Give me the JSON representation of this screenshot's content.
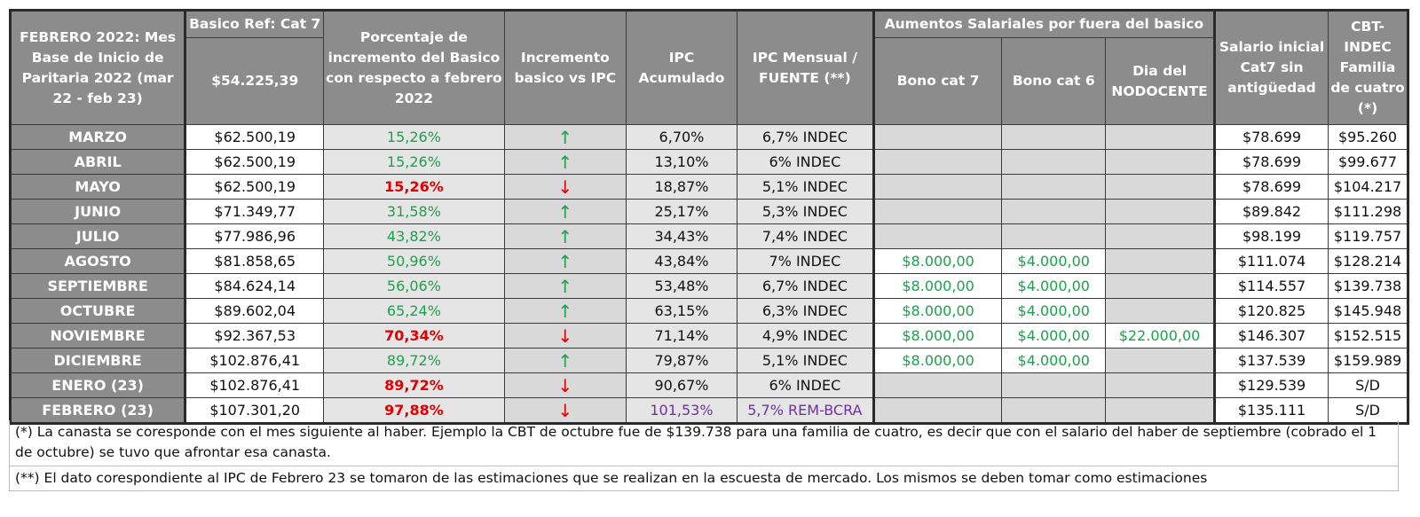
{
  "header": {
    "col1": "FEBRERO 2022: Mes Base de Inicio de Paritaria 2022 (mar 22 - feb 23)",
    "basico_ref": "Basico Ref: Cat 7",
    "basico_ref_value": "$54.225,39",
    "porcentaje": "Porcentaje de incremento del Basico con respecto a febrero 2022",
    "incremento": "Incremento basico vs IPC",
    "ipc_acumulado": "IPC Acumulado",
    "ipc_mensual": "IPC Mensual / FUENTE (**)",
    "aumentos": "Aumentos Salariales por fuera del basico",
    "bono_cat7": "Bono cat 7",
    "bono_cat6": "Bono cat 6",
    "dia_nodocente": "Dia del NODOCENTE",
    "salario_inicial": "Salario inicial Cat7 sin antigüedad",
    "cbt": "CBT-INDEC Familia de cuatro (*)"
  },
  "rows": [
    {
      "mes": "MARZO",
      "basico": "$62.500,19",
      "pct": "15,26%",
      "pct_style": "green",
      "trend": "up",
      "arrow": "↑",
      "ipc_acum": "6,70%",
      "ipc_mensual": "6,7% INDEC",
      "bono7": "",
      "bono6": "",
      "dia": "",
      "salario": "$78.699",
      "cbt": "$95.260"
    },
    {
      "mes": "ABRIL",
      "basico": "$62.500,19",
      "pct": "15,26%",
      "pct_style": "green",
      "trend": "up",
      "arrow": "↑",
      "ipc_acum": "13,10%",
      "ipc_mensual": "6% INDEC",
      "bono7": "",
      "bono6": "",
      "dia": "",
      "salario": "$78.699",
      "cbt": "$99.677"
    },
    {
      "mes": "MAYO",
      "basico": "$62.500,19",
      "pct": "15,26%",
      "pct_style": "red",
      "trend": "down",
      "arrow": "↓",
      "ipc_acum": "18,87%",
      "ipc_mensual": "5,1% INDEC",
      "bono7": "",
      "bono6": "",
      "dia": "",
      "salario": "$78.699",
      "cbt": "$104.217"
    },
    {
      "mes": "JUNIO",
      "basico": "$71.349,77",
      "pct": "31,58%",
      "pct_style": "green",
      "trend": "up",
      "arrow": "↑",
      "ipc_acum": "25,17%",
      "ipc_mensual": "5,3% INDEC",
      "bono7": "",
      "bono6": "",
      "dia": "",
      "salario": "$89.842",
      "cbt": "$111.298"
    },
    {
      "mes": "JULIO",
      "basico": "$77.986,96",
      "pct": "43,82%",
      "pct_style": "green",
      "trend": "up",
      "arrow": "↑",
      "ipc_acum": "34,43%",
      "ipc_mensual": "7,4% INDEC",
      "bono7": "",
      "bono6": "",
      "dia": "",
      "salario": "$98.199",
      "cbt": "$119.757"
    },
    {
      "mes": "AGOSTO",
      "basico": "$81.858,65",
      "pct": "50,96%",
      "pct_style": "green",
      "trend": "up",
      "arrow": "↑",
      "ipc_acum": "43,84%",
      "ipc_mensual": "7% INDEC",
      "bono7": "$8.000,00",
      "bono6": "$4.000,00",
      "dia": "",
      "salario": "$111.074",
      "cbt": "$128.214"
    },
    {
      "mes": "SEPTIEMBRE",
      "basico": "$84.624,14",
      "pct": "56,06%",
      "pct_style": "green",
      "trend": "up",
      "arrow": "↑",
      "ipc_acum": "53,48%",
      "ipc_mensual": "6,7% INDEC",
      "bono7": "$8.000,00",
      "bono6": "$4.000,00",
      "dia": "",
      "salario": "$114.557",
      "cbt": "$139.738"
    },
    {
      "mes": "OCTUBRE",
      "basico": "$89.602,04",
      "pct": "65,24%",
      "pct_style": "green",
      "trend": "up",
      "arrow": "↑",
      "ipc_acum": "63,15%",
      "ipc_mensual": "6,3% INDEC",
      "bono7": "$8.000,00",
      "bono6": "$4.000,00",
      "dia": "",
      "salario": "$120.825",
      "cbt": "$145.948"
    },
    {
      "mes": "NOVIEMBRE",
      "basico": "$92.367,53",
      "pct": "70,34%",
      "pct_style": "red",
      "trend": "down",
      "arrow": "↓",
      "ipc_acum": "71,14%",
      "ipc_mensual": "4,9% INDEC",
      "bono7": "$8.000,00",
      "bono6": "$4.000,00",
      "dia": "$22.000,00",
      "salario": "$146.307",
      "cbt": "$152.515"
    },
    {
      "mes": "DICIEMBRE",
      "basico": "$102.876,41",
      "pct": "89,72%",
      "pct_style": "green",
      "trend": "up",
      "arrow": "↑",
      "ipc_acum": "79,87%",
      "ipc_mensual": "5,1% INDEC",
      "bono7": "$8.000,00",
      "bono6": "$4.000,00",
      "dia": "",
      "salario": "$137.539",
      "cbt": "$159.989"
    },
    {
      "mes": "ENERO (23)",
      "basico": "$102.876,41",
      "pct": "89,72%",
      "pct_style": "red",
      "trend": "down",
      "arrow": "↓",
      "ipc_acum": "90,67%",
      "ipc_mensual": "6% INDEC",
      "bono7": "",
      "bono6": "",
      "dia": "",
      "salario": "$129.539",
      "cbt": "S/D"
    },
    {
      "mes": "FEBRERO (23)",
      "basico": "$107.301,20",
      "pct": "97,88%",
      "pct_style": "red",
      "trend": "down",
      "arrow": "↓",
      "ipc_acum": "101,53%",
      "ipc_mensual": "5,7% REM-BCRA",
      "ipc_style": "purple",
      "bono7": "",
      "bono6": "",
      "dia": "",
      "salario": "$135.111",
      "cbt": "S/D"
    }
  ],
  "notes": {
    "note1": "(*) La canasta se coresponde con el mes siguiente al haber. Ejemplo la CBT de octubre fue de $139.738 para una familia de cuatro, es decir que con el salario del haber de septiembre (cobrado el 1 de octubre) se tuvo que afrontar esa canasta.",
    "note2": "(**) El dato corespondiente al IPC de Febrero 23 se tomaron de las estimaciones que se realizan en la escuesta de mercado. Los mismos se deben tomar como estimaciones"
  },
  "colors": {
    "header_bg": "#8c8c8c",
    "positive": "#1aa34a",
    "negative": "#e00000",
    "estimate": "#7030a0",
    "cell_grey": "#d9d9d9"
  }
}
